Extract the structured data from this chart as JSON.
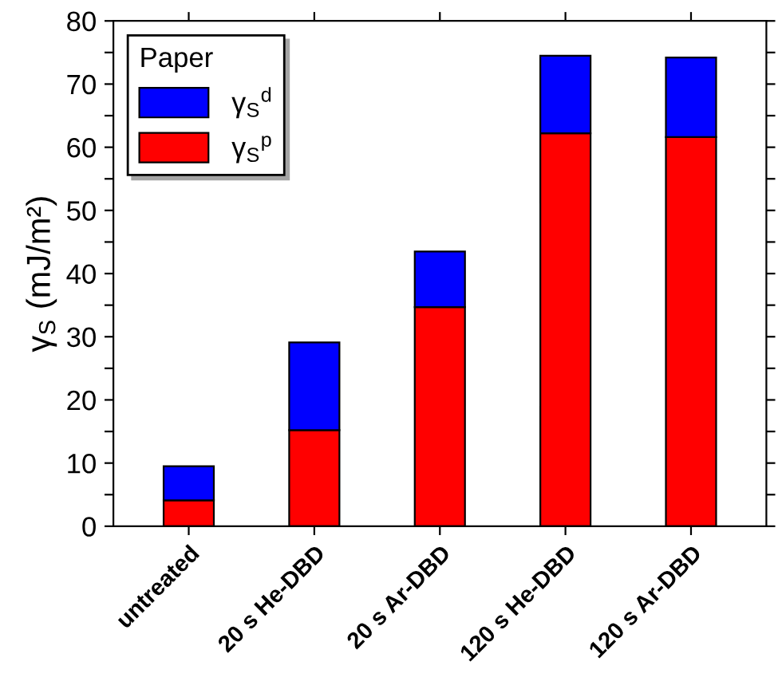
{
  "chart_data": {
    "type": "bar",
    "stacked": true,
    "ylabel": "γ$_{S}$ (mJ/m²)",
    "legend_title": "Paper",
    "legend": "top left",
    "categories": [
      "untreated",
      "20 s He-DBD",
      "20 s Ar-DBD",
      "120 s He-DBD",
      "120 s Ar-DBD"
    ],
    "series": [
      {
        "name": "γ$_{S}$$^{p}$",
        "color": "#ff0000",
        "values": [
          4.1,
          15.2,
          34.7,
          62.2,
          61.6
        ]
      },
      {
        "name": "γ$_{S}$$^{d}$",
        "color": "#0000ff",
        "values": [
          5.4,
          13.9,
          8.8,
          12.3,
          12.6
        ]
      }
    ],
    "ylim": [
      0,
      80
    ],
    "yticks": [
      0,
      {
        "value": 5,
        "label": null
      },
      10,
      {
        "value": 15,
        "label": null
      },
      20,
      {
        "value": 25,
        "label": null
      },
      30,
      {
        "value": 35,
        "label": null
      },
      40,
      {
        "value": 45,
        "label": null
      },
      50,
      {
        "value": 55,
        "label": null
      },
      60,
      {
        "value": 65,
        "label": null
      },
      70,
      {
        "value": 75,
        "label": null
      },
      80
    ],
    "grid": false
  }
}
